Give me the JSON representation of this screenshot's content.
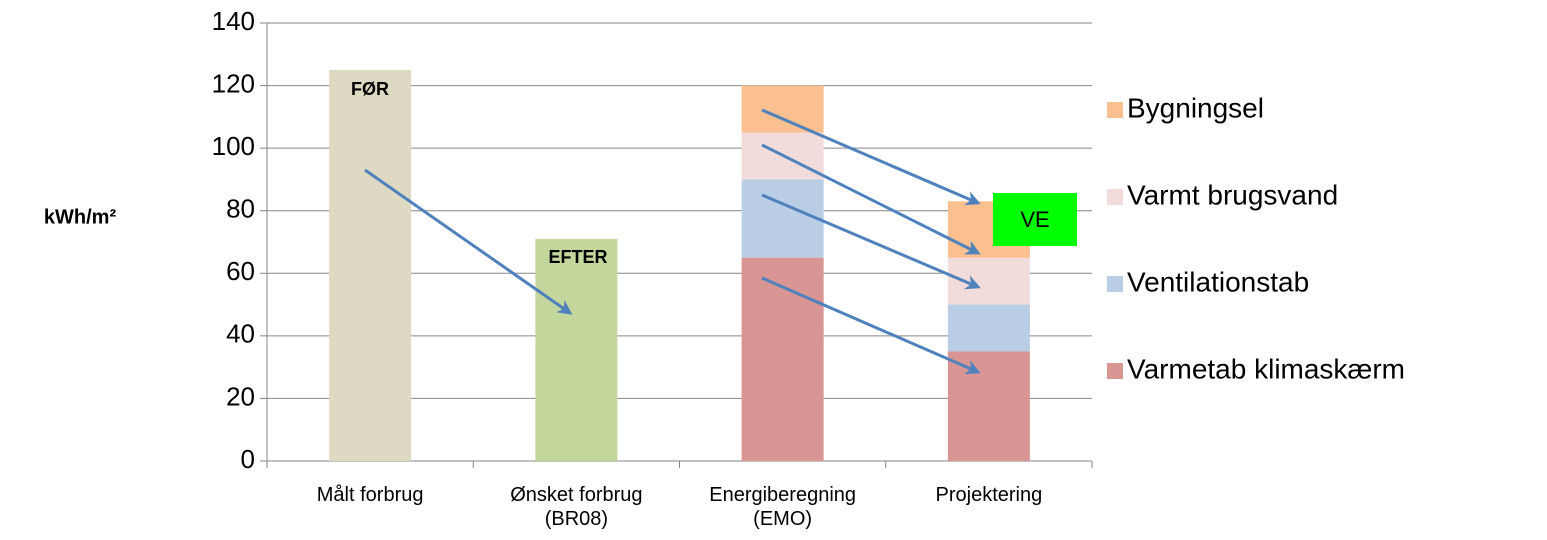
{
  "chart_data": {
    "type": "stacked_bar",
    "y_label": "kWh/m²",
    "categories": [
      [
        "Målt forbrug"
      ],
      [
        "Ønsket forbrug",
        "(BR08)"
      ],
      [
        "Energiberegning",
        "(EMO)"
      ],
      [
        "Projektering"
      ]
    ],
    "series": [
      {
        "name": "Varmetab klimaskærm",
        "color": "#d99594",
        "values": [
          null,
          null,
          65,
          35
        ]
      },
      {
        "name": "Ventilationstab",
        "color": "#b9cde5",
        "values": [
          null,
          null,
          25,
          15
        ]
      },
      {
        "name": "Varmt brugsvand",
        "color": "#f2dcdb",
        "values": [
          null,
          null,
          15,
          15
        ]
      },
      {
        "name": "Bygningsel",
        "color": "#fac090",
        "values": [
          null,
          null,
          15,
          18
        ]
      },
      {
        "color": "#ddd9c3",
        "values": [
          125,
          null,
          null,
          null
        ]
      },
      {
        "color": "#c3d69b",
        "values": [
          null,
          71,
          null,
          null
        ]
      }
    ],
    "annotations": [
      "FØR",
      "EFTER",
      "VE"
    ],
    "ylim": [
      0,
      140
    ],
    "yticks": [
      0,
      20,
      40,
      60,
      80,
      100,
      120,
      140
    ],
    "grid": true
  }
}
